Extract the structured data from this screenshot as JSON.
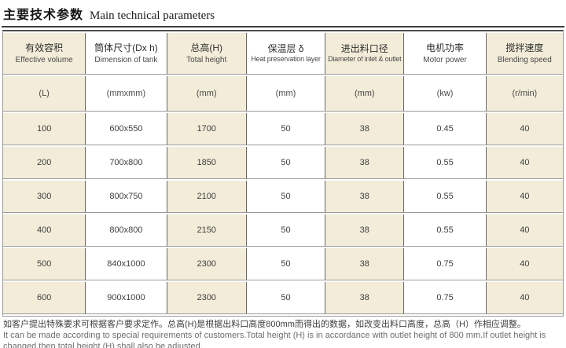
{
  "title": {
    "zh": "主要技术参数",
    "en": "Main technical parameters"
  },
  "colors": {
    "cell_beige": "#f2ecd9",
    "cell_white": "#ffffff",
    "rule_dark": "#4f4f4f"
  },
  "table": {
    "columns": [
      {
        "zh": "有效容积",
        "en": "Effective volume",
        "unit": "(L)"
      },
      {
        "zh": "筒体尺寸(Dx h)",
        "en": "Dimension of tank",
        "unit": "(mmxmm)"
      },
      {
        "zh": "总高(H)",
        "en": "Total height",
        "unit": "(mm)"
      },
      {
        "zh": "保温层 δ",
        "en": "Heat preservation layer",
        "unit": "(mm)"
      },
      {
        "zh": "进出料口径",
        "en": "Diameter of inlet & outlet",
        "unit": "(mm)"
      },
      {
        "zh": "电机功率",
        "en": "Motor power",
        "unit": "(kw)"
      },
      {
        "zh": "搅拌速度",
        "en": "Blending speed",
        "unit": "(r/min)"
      }
    ],
    "rows": [
      [
        "100",
        "600x550",
        "1700",
        "50",
        "38",
        "0.45",
        "40"
      ],
      [
        "200",
        "700x800",
        "1850",
        "50",
        "38",
        "0.55",
        "40"
      ],
      [
        "300",
        "800x750",
        "2100",
        "50",
        "38",
        "0.55",
        "40"
      ],
      [
        "400",
        "800x800",
        "2150",
        "50",
        "38",
        "0.55",
        "40"
      ],
      [
        "500",
        "840x1000",
        "2300",
        "50",
        "38",
        "0.75",
        "40"
      ],
      [
        "600",
        "900x1000",
        "2300",
        "50",
        "38",
        "0.75",
        "40"
      ]
    ]
  },
  "notes": {
    "zh": "如客户提出特殊要求可根据客户要求定作。总高(H)是根据出料口高度800mm而得出的数据，如改变出料口高度，总高（H）作相应调整。",
    "en": "It can be made according to special requirements of customers.Total height (H) is in accordance with outlet height of 800 mm.If outlet height is changed,then total height (H) shall also be adjusted."
  }
}
